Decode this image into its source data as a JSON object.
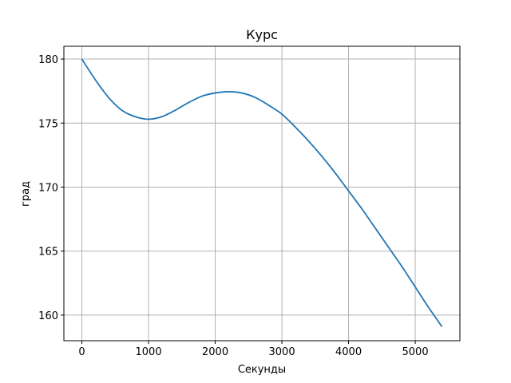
{
  "chart_data": {
    "type": "line",
    "title": "Курс",
    "xlabel": "Секунды",
    "ylabel": "град",
    "xlim": [
      -270,
      5670
    ],
    "ylim": [
      158.0,
      181.0
    ],
    "xticks": [
      0,
      1000,
      2000,
      3000,
      4000,
      5000
    ],
    "yticks": [
      160,
      165,
      170,
      175,
      180
    ],
    "xtick_labels": [
      "0",
      "1000",
      "2000",
      "3000",
      "4000",
      "5000"
    ],
    "ytick_labels": [
      "160",
      "165",
      "170",
      "175",
      "180"
    ],
    "grid": true,
    "legend": "none",
    "series": [
      {
        "color": "#1f77b4",
        "x": [
          0,
          200,
          400,
          600,
          800,
          1000,
          1200,
          1400,
          1600,
          1800,
          2000,
          2200,
          2400,
          2600,
          2800,
          3000,
          3200,
          3400,
          3600,
          3800,
          4000,
          4200,
          4400,
          4600,
          4800,
          5000,
          5200,
          5400
        ],
        "values": [
          180.0,
          178.4,
          177.0,
          176.0,
          175.5,
          175.3,
          175.5,
          176.0,
          176.6,
          177.1,
          177.35,
          177.45,
          177.35,
          177.0,
          176.4,
          175.7,
          174.7,
          173.6,
          172.4,
          171.1,
          169.7,
          168.3,
          166.8,
          165.3,
          163.8,
          162.2,
          160.6,
          159.1
        ]
      }
    ]
  }
}
